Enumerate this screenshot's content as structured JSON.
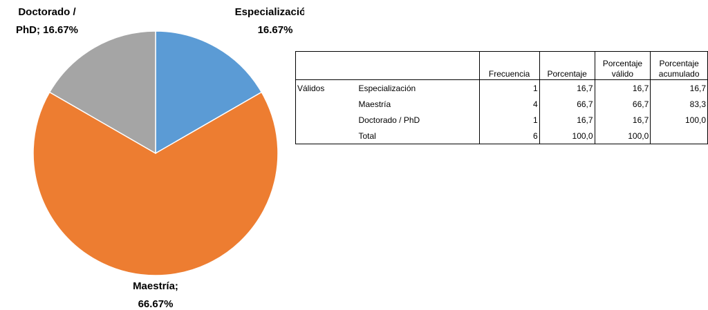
{
  "chart_data": {
    "type": "pie",
    "categories": [
      "Especialización",
      "Maestría",
      "Doctorado / PhD"
    ],
    "values": [
      16.67,
      66.67,
      16.67
    ],
    "value_labels": [
      [
        "Especialización;",
        "16.67%"
      ],
      [
        "Maestría;",
        "66.67%"
      ],
      [
        "Doctorado /",
        "PhD; 16.67%"
      ]
    ],
    "colors": [
      "#5b9bd5",
      "#ed7d31",
      "#a5a5a5"
    ]
  },
  "table": {
    "header": [
      "Frecuencia",
      "Porcentaje",
      "Porcentaje válido",
      "Porcentaje acumulado"
    ],
    "group": "Válidos",
    "rows": [
      [
        "Especialización",
        "1",
        "16,7",
        "16,7",
        "16,7"
      ],
      [
        "Maestría",
        "4",
        "66,7",
        "66,7",
        "83,3"
      ],
      [
        "Doctorado / PhD",
        "1",
        "16,7",
        "16,7",
        "100,0"
      ],
      [
        "Total",
        "6",
        "100,0",
        "100,0",
        null
      ]
    ]
  }
}
